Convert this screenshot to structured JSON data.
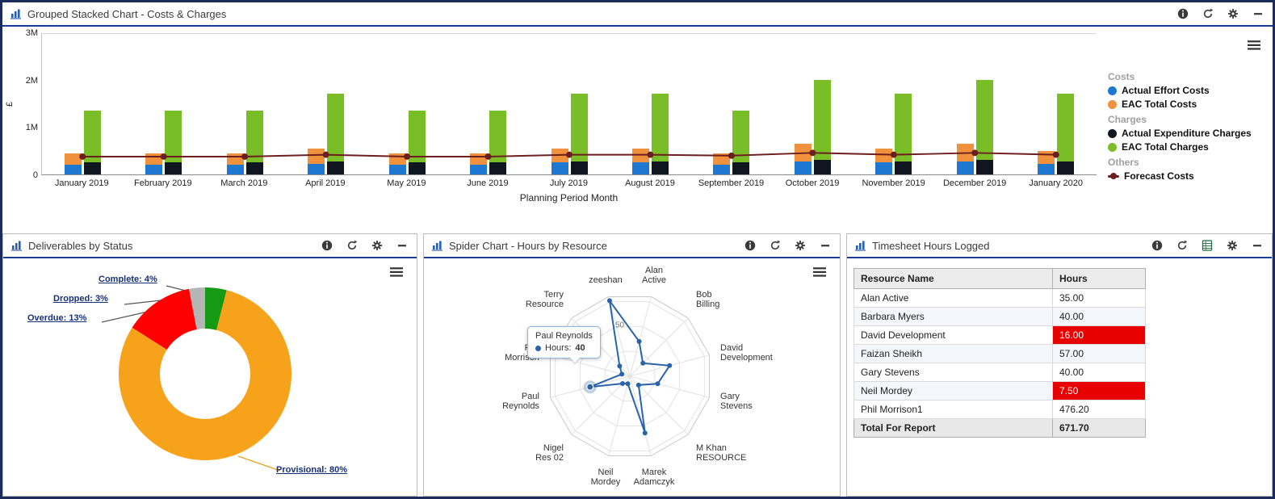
{
  "panels": {
    "costs": {
      "title": "Grouped Stacked Chart - Costs & Charges",
      "icons": [
        "info",
        "refresh",
        "gear",
        "minimize"
      ],
      "chart_data": {
        "type": "bar",
        "subtype": "grouped-stacked",
        "ylabel": "£",
        "xlabel": "Planning Period Month",
        "y_ticks": [
          "3M",
          "2M",
          "1M",
          "0"
        ],
        "ymax_millions": 3,
        "categories": [
          "January 2019",
          "February 2019",
          "March 2019",
          "April 2019",
          "May 2019",
          "June 2019",
          "July 2019",
          "August 2019",
          "September 2019",
          "October 2019",
          "November 2019",
          "December 2019",
          "January 2020"
        ],
        "series": [
          {
            "name": "Actual Effort Costs",
            "group": "Costs",
            "color": "#1e78d2",
            "values_millions": [
              0.2,
              0.2,
              0.2,
              0.22,
              0.2,
              0.2,
              0.25,
              0.25,
              0.2,
              0.28,
              0.25,
              0.28,
              0.22
            ]
          },
          {
            "name": "EAC Total Costs",
            "group": "Costs",
            "color": "#f0913e",
            "values_millions": [
              0.25,
              0.25,
              0.25,
              0.33,
              0.25,
              0.25,
              0.3,
              0.3,
              0.25,
              0.37,
              0.3,
              0.37,
              0.28
            ]
          },
          {
            "name": "Actual Expenditure Charges",
            "group": "Charges",
            "color": "#10161f",
            "values_millions": [
              0.25,
              0.25,
              0.25,
              0.28,
              0.25,
              0.25,
              0.28,
              0.28,
              0.25,
              0.3,
              0.28,
              0.3,
              0.28
            ]
          },
          {
            "name": "EAC Total Charges",
            "group": "Charges",
            "color": "#79bd27",
            "values_millions": [
              1.1,
              1.1,
              1.1,
              1.42,
              1.1,
              1.1,
              1.42,
              1.42,
              1.1,
              1.7,
              1.42,
              1.7,
              1.42
            ]
          }
        ],
        "line_series": {
          "name": "Forecast Costs",
          "group": "Others",
          "color": "#6d1f1f",
          "values_millions": [
            0.38,
            0.38,
            0.38,
            0.42,
            0.38,
            0.38,
            0.42,
            0.42,
            0.4,
            0.46,
            0.42,
            0.46,
            0.42
          ]
        },
        "legend": {
          "groups": [
            {
              "header": "Costs",
              "items": [
                {
                  "label": "Actual Effort Costs",
                  "color": "#1e78d2",
                  "marker": "circle"
                },
                {
                  "label": "EAC Total Costs",
                  "color": "#f0913e",
                  "marker": "circle"
                }
              ]
            },
            {
              "header": "Charges",
              "items": [
                {
                  "label": "Actual Expenditure Charges",
                  "color": "#10161f",
                  "marker": "circle"
                },
                {
                  "label": "EAC Total Charges",
                  "color": "#79bd27",
                  "marker": "circle"
                }
              ]
            },
            {
              "header": "Others",
              "items": [
                {
                  "label": "Forecast Costs",
                  "color": "#6d1f1f",
                  "marker": "line-dot"
                }
              ]
            }
          ]
        }
      }
    },
    "deliverables": {
      "title": "Deliverables by Status",
      "icons": [
        "info",
        "refresh",
        "gear",
        "minimize"
      ],
      "chart_data": {
        "type": "pie",
        "donut": true,
        "slices": [
          {
            "key": "complete",
            "label": "Complete",
            "pct": 4,
            "color": "#169a16"
          },
          {
            "key": "provisional",
            "label": "Provisional",
            "pct": 80,
            "color": "#f7a21b"
          },
          {
            "key": "overdue",
            "label": "Overdue",
            "pct": 13,
            "color": "#ff0000"
          },
          {
            "key": "dropped",
            "label": "Dropped",
            "pct": 3,
            "color": "#b5b5b5"
          }
        ]
      }
    },
    "spider": {
      "title": "Spider Chart - Hours by Resource",
      "icons": [
        "info",
        "refresh",
        "gear",
        "minimize"
      ],
      "chart_data": {
        "type": "radar",
        "series_name": "Hours",
        "color": "#2b63a8",
        "scale_max": 80,
        "rings": [
          25,
          50,
          75
        ],
        "ring_label": "50",
        "axes": [
          {
            "label": [
              "Alan",
              "Active"
            ],
            "value": 35
          },
          {
            "label": [
              "Bob",
              "Billing"
            ],
            "value": 18
          },
          {
            "label": [
              "David",
              "Development"
            ],
            "value": 40
          },
          {
            "label": [
              "Gary",
              "Stevens"
            ],
            "value": 28
          },
          {
            "label": [
              "M Khan",
              "RESOURCE"
            ],
            "value": 12
          },
          {
            "label": [
              "Marek",
              "Adamczyk"
            ],
            "value": 57
          },
          {
            "label": [
              "Neil",
              "Mordey"
            ],
            "value": 7.5
          },
          {
            "label": [
              "Nigel",
              "Res 02"
            ],
            "value": 10
          },
          {
            "label": [
              "Paul",
              "Reynolds"
            ],
            "value": 40,
            "highlight": true
          },
          {
            "label": [
              "Phil",
              "Morrison"
            ],
            "value": 8
          },
          {
            "label": [
              "Terry",
              "Resource"
            ],
            "value": 14
          },
          {
            "label": [
              "zeeshan"
            ],
            "value": 76
          }
        ]
      },
      "tooltip": {
        "title": "Paul Reynolds",
        "label": "Hours:",
        "value": "40"
      }
    },
    "timesheet": {
      "title": "Timesheet Hours Logged",
      "icons": [
        "info",
        "refresh",
        "excel",
        "gear",
        "minimize"
      ],
      "table": {
        "columns": [
          "Resource Name",
          "Hours"
        ],
        "rows": [
          {
            "name": "Alan Active",
            "hours": "35.00",
            "highlight": false
          },
          {
            "name": "Barbara Myers",
            "hours": "40.00",
            "highlight": false
          },
          {
            "name": "David Development",
            "hours": "16.00",
            "highlight": true
          },
          {
            "name": "Faizan Sheikh",
            "hours": "57.00",
            "highlight": false
          },
          {
            "name": "Gary Stevens",
            "hours": "40.00",
            "highlight": false
          },
          {
            "name": "Neil Mordey",
            "hours": "7.50",
            "highlight": true
          },
          {
            "name": "Phil Morrison1",
            "hours": "476.20",
            "highlight": false
          }
        ],
        "total": {
          "label": "Total For Report",
          "value": "671.70"
        },
        "highlight_color": "#e80000"
      }
    }
  }
}
